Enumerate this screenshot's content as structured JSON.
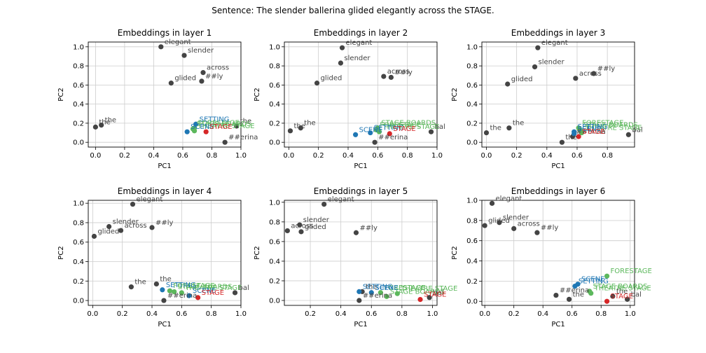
{
  "suptitle": "Sentence: The slender ballerina glided elegantly across the STAGE.",
  "colors": {
    "token": "#444444",
    "context": "#1f77b4",
    "target": "#d62728",
    "candidate": "#5cb85c",
    "grid": "#cccccc"
  },
  "chart_data": [
    {
      "type": "scatter",
      "title": "Embeddings in layer 1",
      "xlabel": "PC1",
      "ylabel": "PC2",
      "xlim": [
        -0.05,
        1.0
      ],
      "ylim": [
        -0.05,
        1.05
      ],
      "xticks": [
        "0.0",
        "0.2",
        "0.4",
        "0.6",
        "0.8",
        "1.0"
      ],
      "yticks": [
        "0.0",
        "0.2",
        "0.4",
        "0.6",
        "0.8",
        "1.0"
      ],
      "grid": true,
      "points": [
        {
          "label": "the",
          "x": 0.0,
          "y": 0.16,
          "group": "token"
        },
        {
          "label": "the",
          "x": 0.04,
          "y": 0.18,
          "group": "token"
        },
        {
          "label": "slender",
          "x": 0.61,
          "y": 0.91,
          "group": "token"
        },
        {
          "label": "elegant",
          "x": 0.45,
          "y": 1.0,
          "group": "token"
        },
        {
          "label": "glided",
          "x": 0.52,
          "y": 0.62,
          "group": "token"
        },
        {
          "label": "across",
          "x": 0.74,
          "y": 0.73,
          "group": "token"
        },
        {
          "label": "##ly",
          "x": 0.73,
          "y": 0.64,
          "group": "token"
        },
        {
          "label": "##erina",
          "x": 0.89,
          "y": 0.0,
          "group": "token"
        },
        {
          "label": "SETTING",
          "x": 0.69,
          "y": 0.19,
          "group": "context"
        },
        {
          "label": "SCENE",
          "x": 0.63,
          "y": 0.11,
          "group": "context"
        },
        {
          "label": "STAGE BOARDS",
          "x": 0.67,
          "y": 0.14,
          "group": "candidate"
        },
        {
          "label": "THEATRE STAGE",
          "x": 0.68,
          "y": 0.12,
          "group": "candidate"
        },
        {
          "label": "FORESTAGE",
          "x": 0.68,
          "y": 0.15,
          "group": "candidate"
        },
        {
          "label": "STAGE",
          "x": 0.76,
          "y": 0.11,
          "group": "target"
        },
        {
          "label": "the",
          "x": 0.97,
          "y": 0.17,
          "group": "token"
        }
      ]
    },
    {
      "type": "scatter",
      "title": "Embeddings in layer 2",
      "xlabel": "PC1",
      "ylabel": "PC2",
      "xlim": [
        -0.03,
        1.0
      ],
      "ylim": [
        -0.05,
        1.05
      ],
      "xticks": [
        "0.0",
        "0.2",
        "0.4",
        "0.6",
        "0.8",
        "1.0"
      ],
      "yticks": [
        "0.0",
        "0.2",
        "0.4",
        "0.6",
        "0.8",
        "1.0"
      ],
      "grid": true,
      "points": [
        {
          "label": "the",
          "x": 0.01,
          "y": 0.12,
          "group": "token"
        },
        {
          "label": "the",
          "x": 0.08,
          "y": 0.15,
          "group": "token"
        },
        {
          "label": "elegant",
          "x": 0.36,
          "y": 0.99,
          "group": "token"
        },
        {
          "label": "slender",
          "x": 0.35,
          "y": 0.83,
          "group": "token"
        },
        {
          "label": "glided",
          "x": 0.19,
          "y": 0.62,
          "group": "token"
        },
        {
          "label": "across",
          "x": 0.64,
          "y": 0.69,
          "group": "token"
        },
        {
          "label": "##ly",
          "x": 0.69,
          "y": 0.68,
          "group": "token"
        },
        {
          "label": "##erina",
          "x": 0.58,
          "y": 0.0,
          "group": "token"
        },
        {
          "label": "SCENE",
          "x": 0.45,
          "y": 0.08,
          "group": "context"
        },
        {
          "label": "SETTING",
          "x": 0.55,
          "y": 0.1,
          "group": "context"
        },
        {
          "label": "FORESTAGE",
          "x": 0.59,
          "y": 0.13,
          "group": "candidate"
        },
        {
          "label": "STAGE BOARDS",
          "x": 0.6,
          "y": 0.15,
          "group": "candidate"
        },
        {
          "label": "THEATRE STAGE",
          "x": 0.61,
          "y": 0.11,
          "group": "candidate"
        },
        {
          "label": "STAGE",
          "x": 0.68,
          "y": 0.09,
          "group": "target"
        },
        {
          "label": "bal",
          "x": 0.96,
          "y": 0.11,
          "group": "token"
        }
      ]
    },
    {
      "type": "scatter",
      "title": "Embeddings in layer 3",
      "xlabel": "PC1",
      "ylabel": "PC2",
      "xlim": [
        -0.03,
        0.98
      ],
      "ylim": [
        -0.05,
        1.05
      ],
      "xticks": [
        "0.0",
        "0.2",
        "0.4",
        "0.6",
        "0.8"
      ],
      "yticks": [
        "0.0",
        "0.2",
        "0.4",
        "0.6",
        "0.8",
        "1.0"
      ],
      "grid": true,
      "points": [
        {
          "label": "the",
          "x": 0.0,
          "y": 0.1,
          "group": "token"
        },
        {
          "label": "the",
          "x": 0.15,
          "y": 0.15,
          "group": "token"
        },
        {
          "label": "elegant",
          "x": 0.34,
          "y": 0.99,
          "group": "token"
        },
        {
          "label": "slender",
          "x": 0.32,
          "y": 0.79,
          "group": "token"
        },
        {
          "label": "glided",
          "x": 0.14,
          "y": 0.61,
          "group": "token"
        },
        {
          "label": "across",
          "x": 0.59,
          "y": 0.67,
          "group": "token"
        },
        {
          "label": "##ly",
          "x": 0.71,
          "y": 0.72,
          "group": "token"
        },
        {
          "label": "##erina",
          "x": 0.57,
          "y": 0.06,
          "group": "token"
        },
        {
          "label": "SETTING",
          "x": 0.58,
          "y": 0.11,
          "group": "context"
        },
        {
          "label": "SCENE",
          "x": 0.58,
          "y": 0.09,
          "group": "context"
        },
        {
          "label": "FORESTAGE",
          "x": 0.61,
          "y": 0.15,
          "group": "candidate"
        },
        {
          "label": "STAGE BOARDS",
          "x": 0.62,
          "y": 0.13,
          "group": "candidate"
        },
        {
          "label": "THEATRE STAGE",
          "x": 0.63,
          "y": 0.1,
          "group": "candidate"
        },
        {
          "label": "STAGE",
          "x": 0.61,
          "y": 0.06,
          "group": "target"
        },
        {
          "label": "the",
          "x": 0.5,
          "y": 0.0,
          "group": "token"
        },
        {
          "label": "bal",
          "x": 0.94,
          "y": 0.08,
          "group": "token"
        }
      ]
    },
    {
      "type": "scatter",
      "title": "Embeddings in layer 4",
      "xlabel": "PC1",
      "ylabel": "PC2",
      "xlim": [
        -0.03,
        1.0
      ],
      "ylim": [
        -0.05,
        1.03
      ],
      "xticks": [
        "0.0",
        "0.2",
        "0.4",
        "0.6",
        "0.8",
        "1.0"
      ],
      "yticks": [
        "0.0",
        "0.2",
        "0.4",
        "0.6",
        "0.8",
        "1.0"
      ],
      "grid": true,
      "points": [
        {
          "label": "glided",
          "x": 0.01,
          "y": 0.66,
          "group": "token"
        },
        {
          "label": "slender",
          "x": 0.11,
          "y": 0.76,
          "group": "token"
        },
        {
          "label": "across",
          "x": 0.19,
          "y": 0.72,
          "group": "token"
        },
        {
          "label": "elegant",
          "x": 0.27,
          "y": 0.99,
          "group": "token"
        },
        {
          "label": "##ly",
          "x": 0.4,
          "y": 0.75,
          "group": "token"
        },
        {
          "label": "the",
          "x": 0.26,
          "y": 0.14,
          "group": "token"
        },
        {
          "label": "the",
          "x": 0.43,
          "y": 0.17,
          "group": "token"
        },
        {
          "label": "##erina",
          "x": 0.48,
          "y": 0.0,
          "group": "token"
        },
        {
          "label": "SETTING",
          "x": 0.47,
          "y": 0.11,
          "group": "context"
        },
        {
          "label": "SCENE",
          "x": 0.65,
          "y": 0.05,
          "group": "context"
        },
        {
          "label": "FORESTAGE",
          "x": 0.52,
          "y": 0.1,
          "group": "candidate"
        },
        {
          "label": "STAGE BOARDS",
          "x": 0.55,
          "y": 0.09,
          "group": "candidate"
        },
        {
          "label": "THEATRE STAGE",
          "x": 0.6,
          "y": 0.08,
          "group": "candidate"
        },
        {
          "label": "STAGE",
          "x": 0.71,
          "y": 0.03,
          "group": "target"
        },
        {
          "label": "bal",
          "x": 0.96,
          "y": 0.08,
          "group": "token"
        }
      ]
    },
    {
      "type": "scatter",
      "title": "Embeddings in layer 5",
      "xlabel": "PC1",
      "ylabel": "PC2",
      "xlim": [
        0.03,
        1.03
      ],
      "ylim": [
        -0.05,
        1.02
      ],
      "xticks": [
        "0.2",
        "0.4",
        "0.6",
        "0.8",
        "1.0"
      ],
      "yticks": [
        "0.0",
        "0.2",
        "0.4",
        "0.6",
        "0.8",
        "1.0"
      ],
      "grid": true,
      "points": [
        {
          "label": "across",
          "x": 0.05,
          "y": 0.71,
          "group": "token"
        },
        {
          "label": "slender",
          "x": 0.13,
          "y": 0.77,
          "group": "token"
        },
        {
          "label": "glided",
          "x": 0.14,
          "y": 0.7,
          "group": "token"
        },
        {
          "label": "elegant",
          "x": 0.29,
          "y": 0.98,
          "group": "token"
        },
        {
          "label": "##ly",
          "x": 0.5,
          "y": 0.69,
          "group": "token"
        },
        {
          "label": "SETTING",
          "x": 0.52,
          "y": 0.09,
          "group": "context"
        },
        {
          "label": "SCENE",
          "x": 0.6,
          "y": 0.08,
          "group": "context"
        },
        {
          "label": "FORESTAGE",
          "x": 0.66,
          "y": 0.08,
          "group": "candidate"
        },
        {
          "label": "STAGE BOARDS",
          "x": 0.7,
          "y": 0.04,
          "group": "candidate"
        },
        {
          "label": "THEATRE STAGE",
          "x": 0.77,
          "y": 0.07,
          "group": "candidate"
        },
        {
          "label": "STAGE",
          "x": 0.92,
          "y": 0.01,
          "group": "target"
        },
        {
          "label": "the",
          "x": 0.54,
          "y": 0.09,
          "group": "token"
        },
        {
          "label": "##erina",
          "x": 0.52,
          "y": 0.0,
          "group": "token"
        },
        {
          "label": "bal",
          "x": 0.98,
          "y": 0.03,
          "group": "token"
        }
      ]
    },
    {
      "type": "scatter",
      "title": "Embeddings in layer 6",
      "xlabel": "PC1",
      "ylabel": "PC2",
      "xlim": [
        -0.02,
        1.03
      ],
      "ylim": [
        -0.04,
        1.0
      ],
      "xticks": [
        "0.0",
        "0.2",
        "0.4",
        "0.6",
        "0.8",
        "1.0"
      ],
      "yticks": [
        "0.0",
        "0.2",
        "0.4",
        "0.6",
        "0.8",
        "1.0"
      ],
      "grid": true,
      "points": [
        {
          "label": "elegant",
          "x": 0.05,
          "y": 0.97,
          "group": "token"
        },
        {
          "label": "glided",
          "x": 0.0,
          "y": 0.75,
          "group": "token"
        },
        {
          "label": "slender",
          "x": 0.1,
          "y": 0.78,
          "group": "token"
        },
        {
          "label": "across",
          "x": 0.2,
          "y": 0.72,
          "group": "token"
        },
        {
          "label": "##ly",
          "x": 0.36,
          "y": 0.68,
          "group": "token"
        },
        {
          "label": "##erina",
          "x": 0.49,
          "y": 0.06,
          "group": "token"
        },
        {
          "label": "the",
          "x": 0.58,
          "y": 0.02,
          "group": "token"
        },
        {
          "label": "SETTING",
          "x": 0.62,
          "y": 0.15,
          "group": "context"
        },
        {
          "label": "SCENE",
          "x": 0.64,
          "y": 0.17,
          "group": "context"
        },
        {
          "label": "FORESTAGE",
          "x": 0.84,
          "y": 0.25,
          "group": "candidate"
        },
        {
          "label": "STAGE BOARDS",
          "x": 0.72,
          "y": 0.1,
          "group": "candidate"
        },
        {
          "label": "THEATRE STAGE",
          "x": 0.73,
          "y": 0.08,
          "group": "candidate"
        },
        {
          "label": "the",
          "x": 0.88,
          "y": 0.05,
          "group": "token"
        },
        {
          "label": "STAGE",
          "x": 0.84,
          "y": 0.0,
          "group": "target"
        },
        {
          "label": "bal",
          "x": 0.98,
          "y": 0.02,
          "group": "token"
        }
      ]
    }
  ]
}
